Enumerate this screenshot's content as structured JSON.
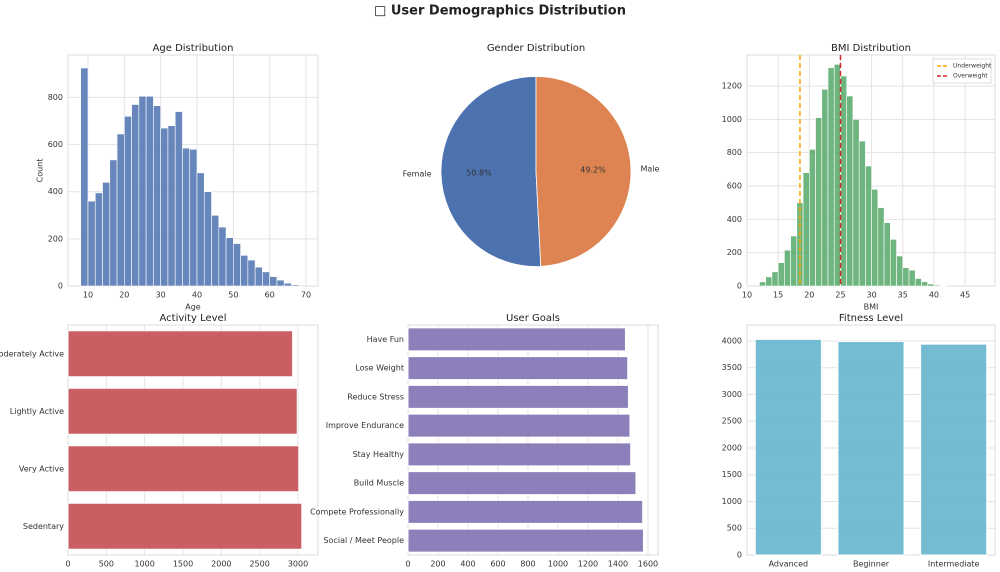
{
  "title": "□ User Demographics Distribution",
  "chart_data": [
    {
      "type": "histogram",
      "title": "Age Distribution",
      "xlabel": "Age",
      "ylabel": "Count",
      "color": "#4c72b0",
      "grid": true,
      "bins": [
        8,
        10,
        12,
        14,
        16,
        18,
        20,
        22,
        24,
        26,
        28,
        30,
        32,
        34,
        36,
        38,
        40,
        42,
        44,
        46,
        48,
        50,
        52,
        54,
        56,
        58,
        60,
        62,
        64,
        66,
        68
      ],
      "values": [
        925,
        360,
        395,
        440,
        535,
        645,
        720,
        770,
        805,
        805,
        765,
        670,
        680,
        740,
        585,
        580,
        480,
        400,
        300,
        250,
        205,
        180,
        130,
        110,
        80,
        60,
        40,
        25,
        12,
        5
      ],
      "xlim": [
        4.5,
        73.3
      ],
      "xticks": [
        10,
        20,
        30,
        40,
        50,
        60,
        70
      ],
      "ylim": [
        0,
        980
      ],
      "yticks": [
        0,
        200,
        400,
        600,
        800
      ]
    },
    {
      "type": "pie",
      "title": "Gender Distribution",
      "categories": [
        "Female",
        "Male"
      ],
      "values": [
        50.8,
        49.2
      ],
      "value_labels": [
        "50.8%",
        "49.2%"
      ],
      "colors": [
        "#4c72b0",
        "#dd8452"
      ],
      "startangle": 90
    },
    {
      "type": "histogram",
      "title": "BMI Distribution",
      "xlabel": "BMI",
      "color": "#55a868",
      "grid": true,
      "bins": [
        12,
        13,
        14,
        15,
        16,
        17,
        18,
        19,
        20,
        21,
        22,
        23,
        24,
        25,
        26,
        27,
        28,
        29,
        30,
        31,
        32,
        33,
        34,
        35,
        36,
        37,
        38,
        39,
        40,
        41,
        42
      ],
      "values": [
        25,
        55,
        85,
        140,
        215,
        300,
        500,
        680,
        820,
        1010,
        1180,
        1310,
        1330,
        1260,
        1140,
        1000,
        870,
        720,
        580,
        470,
        380,
        280,
        180,
        110,
        95,
        45,
        25,
        12,
        6,
        3
      ],
      "xlim": [
        10,
        49.8
      ],
      "xticks": [
        10,
        15,
        20,
        25,
        30,
        35,
        40,
        45
      ],
      "ylim": [
        0,
        1386
      ],
      "yticks": [
        0,
        200,
        400,
        600,
        800,
        1000,
        1200
      ],
      "lines": [
        {
          "name": "Underweight",
          "value": 18.5,
          "color": "#ffa500"
        },
        {
          "name": "Overweight",
          "value": 25,
          "color": "#d62728"
        }
      ],
      "legend": "upper right"
    },
    {
      "type": "barh",
      "title": "Activity Level",
      "color": "#c44e52",
      "grid": true,
      "categories": [
        "Moderately Active",
        "Lightly Active",
        "Very Active",
        "Sedentary"
      ],
      "values": [
        2930,
        2990,
        3010,
        3050
      ],
      "xlim": [
        0,
        3261
      ],
      "xticks": [
        0,
        500,
        1000,
        1500,
        2000,
        2500,
        3000
      ]
    },
    {
      "type": "barh",
      "title": "User Goals",
      "color": "#8172b3",
      "grid": true,
      "categories": [
        "Have Fun",
        "Lose Weight",
        "Reduce Stress",
        "Improve Endurance",
        "Stay Healthy",
        "Build Muscle",
        "Compete Professionally",
        "Social / Meet People"
      ],
      "values": [
        1450,
        1465,
        1470,
        1480,
        1485,
        1520,
        1565,
        1570
      ],
      "xlim": [
        0,
        1667
      ],
      "xticks": [
        0,
        200,
        400,
        600,
        800,
        1000,
        1200,
        1400,
        1600
      ]
    },
    {
      "type": "bar",
      "title": "Fitness Level",
      "color": "#64b5cd",
      "grid": true,
      "categories": [
        "Advanced",
        "Beginner",
        "Intermediate"
      ],
      "values": [
        4030,
        3990,
        3940
      ],
      "ylim": [
        0,
        4298
      ],
      "yticks": [
        0,
        500,
        1000,
        1500,
        2000,
        2500,
        3000,
        3500,
        4000
      ]
    }
  ]
}
